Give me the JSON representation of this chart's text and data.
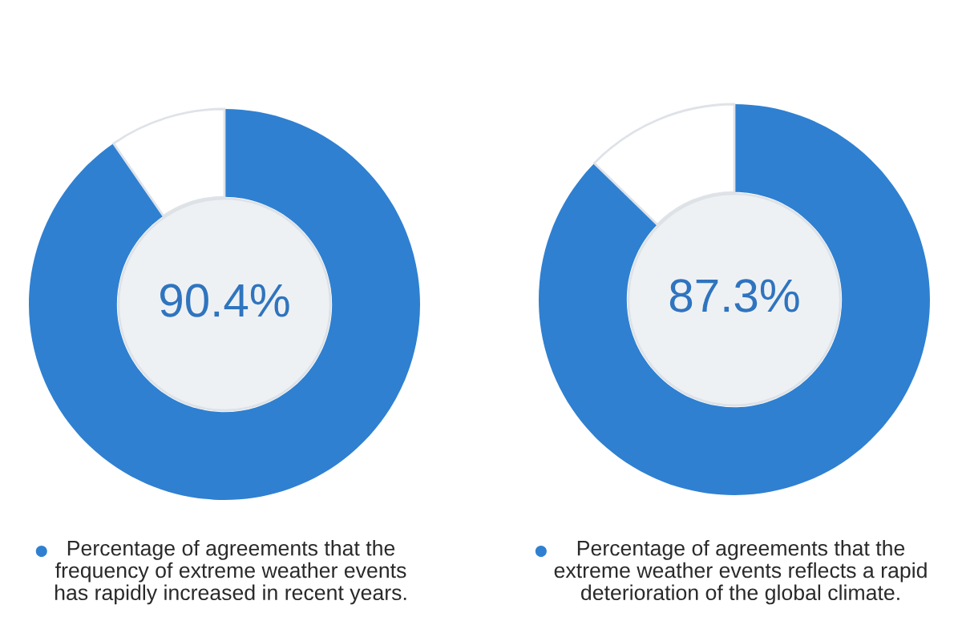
{
  "chart_data": [
    {
      "type": "donut",
      "categories": [
        "Percentage of agreements that the\nfrequency of extreme weather events\nhas rapidly increased in recent years.",
        null
      ],
      "values": [
        90.4,
        9.6
      ],
      "colors": [
        "#2f80d1",
        "#ffffff"
      ],
      "value_labels": [
        "90.4%",
        null
      ],
      "legend": "bottom"
    },
    {
      "type": "donut",
      "categories": [
        "Percentage of agreements that the\nextreme weather events reflects a rapid\ndeterioration of the global climate.",
        null
      ],
      "values": [
        87.3,
        12.7
      ],
      "colors": [
        "#2f80d1",
        "#ffffff"
      ],
      "value_labels": [
        "87.3%",
        null
      ],
      "legend": "bottom"
    }
  ]
}
